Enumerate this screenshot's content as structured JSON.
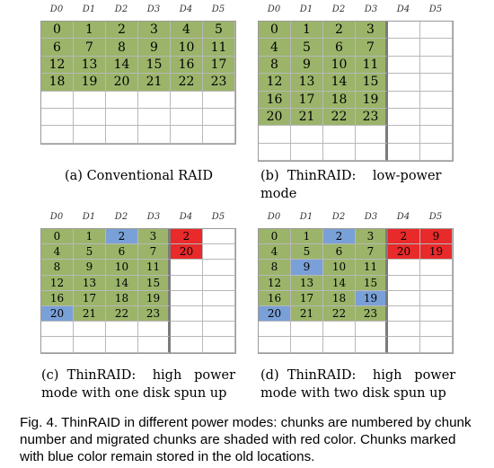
{
  "panels": [
    {
      "id": "a",
      "caption": "(a) Conventional RAID",
      "headers": [
        "D0",
        "D1",
        "D2",
        "D3",
        "D4",
        "D5"
      ],
      "rows": [
        [
          [
            "0",
            "green"
          ],
          [
            "1",
            "green"
          ],
          [
            "2",
            "green"
          ],
          [
            "3",
            "green"
          ],
          [
            "4",
            "green"
          ],
          [
            "5",
            "green"
          ]
        ],
        [
          [
            "6",
            "green"
          ],
          [
            "7",
            "green"
          ],
          [
            "8",
            "green"
          ],
          [
            "9",
            "green"
          ],
          [
            "10",
            "green"
          ],
          [
            "11",
            "green"
          ]
        ],
        [
          [
            "12",
            "green"
          ],
          [
            "13",
            "green"
          ],
          [
            "14",
            "green"
          ],
          [
            "15",
            "green"
          ],
          [
            "16",
            "green"
          ],
          [
            "17",
            "green"
          ]
        ],
        [
          [
            "18",
            "green"
          ],
          [
            "19",
            "green"
          ],
          [
            "20",
            "green"
          ],
          [
            "21",
            "green"
          ],
          [
            "22",
            "green"
          ],
          [
            "23",
            "green"
          ]
        ],
        [
          [
            "",
            "empty"
          ],
          [
            "",
            "empty"
          ],
          [
            "",
            "empty"
          ],
          [
            "",
            "empty"
          ],
          [
            "",
            "empty"
          ],
          [
            "",
            "empty"
          ]
        ],
        [
          [
            "",
            "empty"
          ],
          [
            "",
            "empty"
          ],
          [
            "",
            "empty"
          ],
          [
            "",
            "empty"
          ],
          [
            "",
            "empty"
          ],
          [
            "",
            "empty"
          ]
        ],
        [
          [
            "",
            "empty"
          ],
          [
            "",
            "empty"
          ],
          [
            "",
            "empty"
          ],
          [
            "",
            "empty"
          ],
          [
            "",
            "empty"
          ],
          [
            "",
            "empty"
          ]
        ]
      ]
    },
    {
      "id": "b",
      "caption": "(b)  ThinRAID:    low-power mode",
      "headers": [
        "D0",
        "D1",
        "D2",
        "D3",
        "D4",
        "D5"
      ],
      "rows": [
        [
          [
            "0",
            "green"
          ],
          [
            "1",
            "green"
          ],
          [
            "2",
            "green"
          ],
          [
            "3",
            "green"
          ],
          [
            "",
            "empty"
          ],
          [
            "",
            "empty"
          ]
        ],
        [
          [
            "4",
            "green"
          ],
          [
            "5",
            "green"
          ],
          [
            "6",
            "green"
          ],
          [
            "7",
            "green"
          ],
          [
            "",
            "empty"
          ],
          [
            "",
            "empty"
          ]
        ],
        [
          [
            "8",
            "green"
          ],
          [
            "9",
            "green"
          ],
          [
            "10",
            "green"
          ],
          [
            "11",
            "green"
          ],
          [
            "",
            "empty"
          ],
          [
            "",
            "empty"
          ]
        ],
        [
          [
            "12",
            "green"
          ],
          [
            "13",
            "green"
          ],
          [
            "14",
            "green"
          ],
          [
            "15",
            "green"
          ],
          [
            "",
            "empty"
          ],
          [
            "",
            "empty"
          ]
        ],
        [
          [
            "16",
            "green"
          ],
          [
            "17",
            "green"
          ],
          [
            "18",
            "green"
          ],
          [
            "19",
            "green"
          ],
          [
            "",
            "empty"
          ],
          [
            "",
            "empty"
          ]
        ],
        [
          [
            "20",
            "green"
          ],
          [
            "21",
            "green"
          ],
          [
            "22",
            "green"
          ],
          [
            "23",
            "green"
          ],
          [
            "",
            "empty"
          ],
          [
            "",
            "empty"
          ]
        ],
        [
          [
            "",
            "empty"
          ],
          [
            "",
            "empty"
          ],
          [
            "",
            "empty"
          ],
          [
            "",
            "empty"
          ],
          [
            "",
            "empty"
          ],
          [
            "",
            "empty"
          ]
        ],
        [
          [
            "",
            "empty"
          ],
          [
            "",
            "empty"
          ],
          [
            "",
            "empty"
          ],
          [
            "",
            "empty"
          ],
          [
            "",
            "empty"
          ],
          [
            "",
            "empty"
          ]
        ]
      ]
    },
    {
      "id": "c",
      "caption": "(c)  ThinRAID:    high   power mode with one disk spun up",
      "headers": [
        "D0",
        "D1",
        "D2",
        "D3",
        "D4",
        "D5"
      ],
      "rows": [
        [
          [
            "0",
            "green"
          ],
          [
            "1",
            "green"
          ],
          [
            "2",
            "blue"
          ],
          [
            "3",
            "green"
          ],
          [
            "2",
            "red"
          ],
          [
            "",
            "empty"
          ]
        ],
        [
          [
            "4",
            "green"
          ],
          [
            "5",
            "green"
          ],
          [
            "6",
            "green"
          ],
          [
            "7",
            "green"
          ],
          [
            "20",
            "red"
          ],
          [
            "",
            "empty"
          ]
        ],
        [
          [
            "8",
            "green"
          ],
          [
            "9",
            "green"
          ],
          [
            "10",
            "green"
          ],
          [
            "11",
            "green"
          ],
          [
            "",
            "empty"
          ],
          [
            "",
            "empty"
          ]
        ],
        [
          [
            "12",
            "green"
          ],
          [
            "13",
            "green"
          ],
          [
            "14",
            "green"
          ],
          [
            "15",
            "green"
          ],
          [
            "",
            "empty"
          ],
          [
            "",
            "empty"
          ]
        ],
        [
          [
            "16",
            "green"
          ],
          [
            "17",
            "green"
          ],
          [
            "18",
            "green"
          ],
          [
            "19",
            "green"
          ],
          [
            "",
            "empty"
          ],
          [
            "",
            "empty"
          ]
        ],
        [
          [
            "20",
            "blue"
          ],
          [
            "21",
            "green"
          ],
          [
            "22",
            "green"
          ],
          [
            "23",
            "green"
          ],
          [
            "",
            "empty"
          ],
          [
            "",
            "empty"
          ]
        ],
        [
          [
            "",
            "empty"
          ],
          [
            "",
            "empty"
          ],
          [
            "",
            "empty"
          ],
          [
            "",
            "empty"
          ],
          [
            "",
            "empty"
          ],
          [
            "",
            "empty"
          ]
        ],
        [
          [
            "",
            "empty"
          ],
          [
            "",
            "empty"
          ],
          [
            "",
            "empty"
          ],
          [
            "",
            "empty"
          ],
          [
            "",
            "empty"
          ],
          [
            "",
            "empty"
          ]
        ]
      ]
    },
    {
      "id": "d",
      "caption": "(d)  ThinRAID:    high   power mode with two disk spun up",
      "headers": [
        "D0",
        "D1",
        "D2",
        "D3",
        "D4",
        "D5"
      ],
      "rows": [
        [
          [
            "0",
            "green"
          ],
          [
            "1",
            "green"
          ],
          [
            "2",
            "blue"
          ],
          [
            "3",
            "green"
          ],
          [
            "2",
            "red"
          ],
          [
            "9",
            "red"
          ]
        ],
        [
          [
            "4",
            "green"
          ],
          [
            "5",
            "green"
          ],
          [
            "6",
            "green"
          ],
          [
            "7",
            "green"
          ],
          [
            "20",
            "red"
          ],
          [
            "19",
            "red"
          ]
        ],
        [
          [
            "8",
            "green"
          ],
          [
            "9",
            "blue"
          ],
          [
            "10",
            "green"
          ],
          [
            "11",
            "green"
          ],
          [
            "",
            "empty"
          ],
          [
            "",
            "empty"
          ]
        ],
        [
          [
            "12",
            "green"
          ],
          [
            "13",
            "green"
          ],
          [
            "14",
            "green"
          ],
          [
            "15",
            "green"
          ],
          [
            "",
            "empty"
          ],
          [
            "",
            "empty"
          ]
        ],
        [
          [
            "16",
            "green"
          ],
          [
            "17",
            "green"
          ],
          [
            "18",
            "green"
          ],
          [
            "19",
            "blue"
          ],
          [
            "",
            "empty"
          ],
          [
            "",
            "empty"
          ]
        ],
        [
          [
            "20",
            "blue"
          ],
          [
            "21",
            "green"
          ],
          [
            "22",
            "green"
          ],
          [
            "23",
            "green"
          ],
          [
            "",
            "empty"
          ],
          [
            "",
            "empty"
          ]
        ],
        [
          [
            "",
            "empty"
          ],
          [
            "",
            "empty"
          ],
          [
            "",
            "empty"
          ],
          [
            "",
            "empty"
          ],
          [
            "",
            "empty"
          ],
          [
            "",
            "empty"
          ]
        ],
        [
          [
            "",
            "empty"
          ],
          [
            "",
            "empty"
          ],
          [
            "",
            "empty"
          ],
          [
            "",
            "empty"
          ],
          [
            "",
            "empty"
          ],
          [
            "",
            "empty"
          ]
        ]
      ]
    }
  ],
  "figure_caption": "Fig. 4. ThinRAID in different power modes: chunks are numbered by chunk number and migrated chunks are shaded with red color. Chunks marked with blue color remain stored in the old locations.",
  "colors": {
    "green": "#9bb46a",
    "blue": "#7aa0d8",
    "red": "#e82a2a"
  }
}
